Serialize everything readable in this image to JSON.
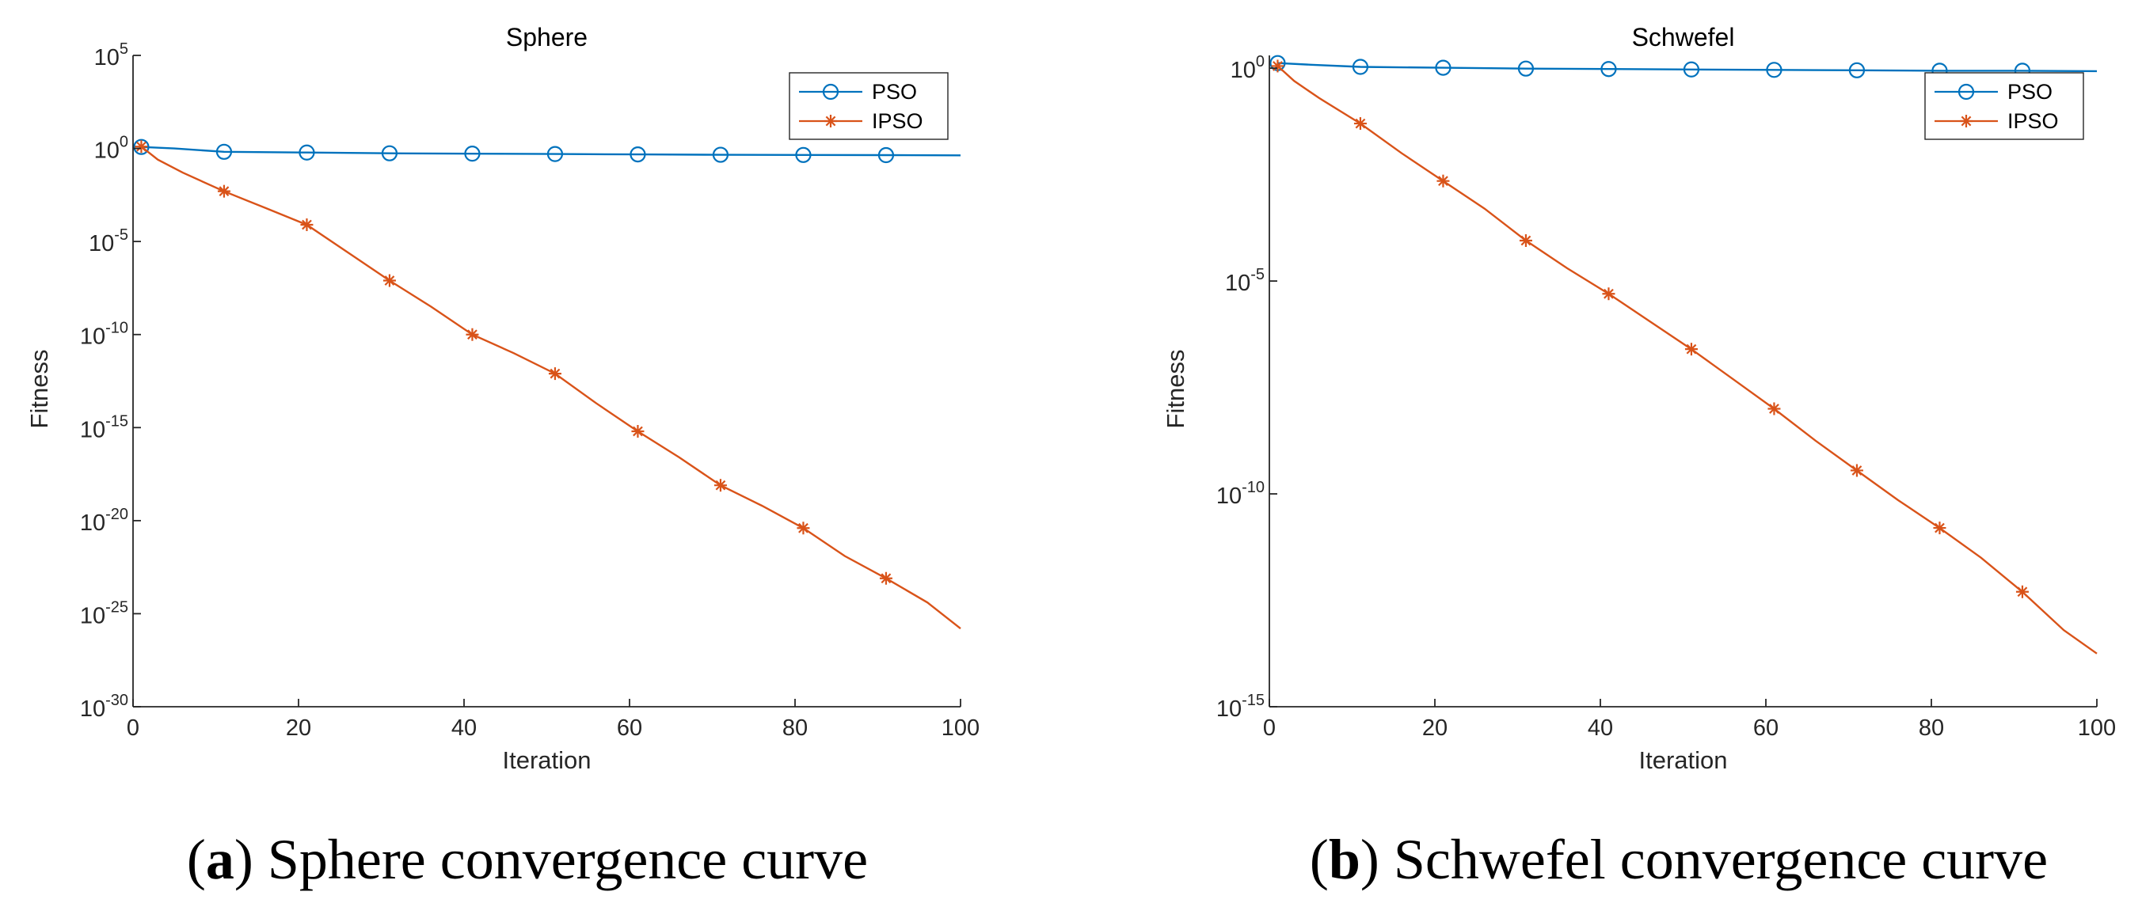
{
  "colors": {
    "pso": "#0072BD",
    "ipso": "#D95319",
    "axis": "#262626"
  },
  "chart_data": [
    {
      "id": "a",
      "type": "line",
      "title": "Sphere",
      "xlabel": "Iteration",
      "ylabel": "Fitness",
      "yscale": "log",
      "xlim": [
        0,
        100
      ],
      "ylim_exp": [
        -30,
        5
      ],
      "xticks": [
        0,
        20,
        40,
        60,
        80,
        100
      ],
      "xtick_labels": [
        "0",
        "20",
        "40",
        "60",
        "80",
        "100"
      ],
      "yticks_exp": [
        -30,
        -25,
        -20,
        -15,
        -10,
        -5,
        0,
        5
      ],
      "ytick_labels": [
        {
          "base": "10",
          "exp": "-30"
        },
        {
          "base": "10",
          "exp": "-25"
        },
        {
          "base": "10",
          "exp": "-20"
        },
        {
          "base": "10",
          "exp": "-15"
        },
        {
          "base": "10",
          "exp": "-10"
        },
        {
          "base": "10",
          "exp": "-5"
        },
        {
          "base": "10",
          "exp": "0"
        },
        {
          "base": "10",
          "exp": "5"
        }
      ],
      "legend": {
        "position": "top-right",
        "entries": [
          "PSO",
          "IPSO"
        ]
      },
      "caption": {
        "letter": "a",
        "text": "Sphere convergence curve"
      },
      "series": [
        {
          "name": "PSO",
          "marker": "circle",
          "markers_every": 10,
          "x": [
            1,
            5,
            11,
            21,
            31,
            41,
            51,
            61,
            71,
            81,
            91,
            100
          ],
          "log10_y": [
            0.08,
            0.0,
            -0.18,
            -0.22,
            -0.26,
            -0.28,
            -0.3,
            -0.32,
            -0.34,
            -0.35,
            -0.36,
            -0.37
          ]
        },
        {
          "name": "IPSO",
          "marker": "asterisk",
          "markers_every": 10,
          "x": [
            1,
            3,
            6,
            11,
            16,
            21,
            26,
            31,
            36,
            41,
            46,
            51,
            56,
            61,
            66,
            71,
            76,
            81,
            86,
            91,
            96,
            100
          ],
          "log10_y": [
            0.1,
            -0.6,
            -1.3,
            -2.3,
            -3.2,
            -4.1,
            -5.6,
            -7.1,
            -8.5,
            -10.0,
            -11.0,
            -12.1,
            -13.7,
            -15.2,
            -16.6,
            -18.1,
            -19.2,
            -20.4,
            -21.9,
            -23.1,
            -24.4,
            -25.8
          ]
        }
      ]
    },
    {
      "id": "b",
      "type": "line",
      "title": "Schwefel",
      "xlabel": "Iteration",
      "ylabel": "Fitness",
      "yscale": "log",
      "xlim": [
        0,
        100
      ],
      "ylim_exp": [
        -15,
        0.3
      ],
      "xticks": [
        0,
        20,
        40,
        60,
        80,
        100
      ],
      "xtick_labels": [
        "0",
        "20",
        "40",
        "60",
        "80",
        "100"
      ],
      "yticks_exp": [
        -15,
        -10,
        -5,
        0
      ],
      "ytick_labels": [
        {
          "base": "10",
          "exp": "-15"
        },
        {
          "base": "10",
          "exp": "-10"
        },
        {
          "base": "10",
          "exp": "-5"
        },
        {
          "base": "10",
          "exp": "0"
        }
      ],
      "legend": {
        "position": "top-right",
        "entries": [
          "PSO",
          "IPSO"
        ]
      },
      "caption": {
        "letter": "b",
        "text": "Schwefel convergence curve"
      },
      "series": [
        {
          "name": "PSO",
          "marker": "circle",
          "markers_every": 10,
          "x": [
            1,
            5,
            11,
            21,
            31,
            41,
            51,
            61,
            71,
            81,
            91,
            100
          ],
          "log10_y": [
            0.12,
            0.08,
            0.03,
            0.01,
            -0.01,
            -0.02,
            -0.03,
            -0.04,
            -0.05,
            -0.06,
            -0.06,
            -0.07
          ]
        },
        {
          "name": "IPSO",
          "marker": "asterisk",
          "markers_every": 10,
          "x": [
            1,
            3,
            6,
            11,
            16,
            21,
            26,
            31,
            36,
            41,
            46,
            51,
            56,
            61,
            66,
            71,
            76,
            81,
            86,
            91,
            96,
            100
          ],
          "log10_y": [
            0.05,
            -0.3,
            -0.7,
            -1.3,
            -2.0,
            -2.65,
            -3.3,
            -4.05,
            -4.7,
            -5.3,
            -5.95,
            -6.6,
            -7.3,
            -8.0,
            -8.75,
            -9.45,
            -10.15,
            -10.8,
            -11.5,
            -12.3,
            -13.2,
            -13.75
          ]
        }
      ]
    }
  ]
}
